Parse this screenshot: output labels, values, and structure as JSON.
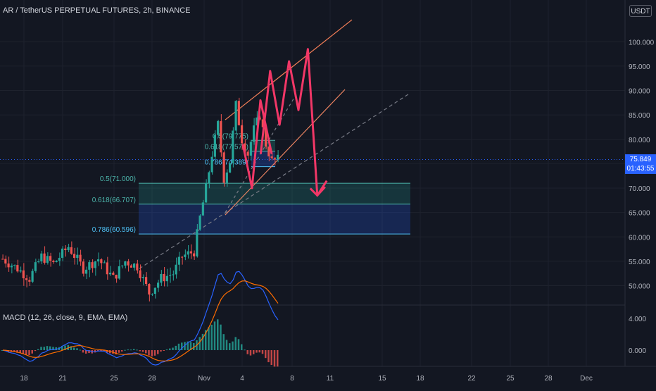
{
  "header": {
    "title": "AR / TetherUS PERPETUAL FUTURES, 2h, BINANCE",
    "currency_button": "USDT"
  },
  "macd_panel": {
    "title": "MACD (12, 26, close, 9, EMA, EMA)"
  },
  "last_price": {
    "value": "75.849",
    "countdown": "01:43:55",
    "color": "#2962ff"
  },
  "colors": {
    "background": "#131722",
    "grid": "#1e222d",
    "up_candle": "#26a69a",
    "down_candle": "#ef5350",
    "fib_upper_zone": "#26a69a",
    "fib_lower_zone": "#2962ff",
    "fib_line_upper": "#4db6ac",
    "fib_line_lower": "#4fc3f7",
    "projection_path": "#f23767",
    "channel": "#f57f58",
    "trendline": "#787b86",
    "macd_line": "#2962ff",
    "signal_line": "#ff6d00"
  },
  "fib_levels_main": [
    {
      "label": "0.5(71.000)",
      "price": 71.0
    },
    {
      "label": "0.618(66.707)",
      "price": 66.707
    },
    {
      "label": "0.786(60.596)",
      "price": 60.596
    }
  ],
  "fib_levels_small": [
    {
      "label": "0.5(79.775)",
      "price": 79.775
    },
    {
      "label": "0.618(77.575)",
      "price": 77.575
    },
    {
      "label": "0.786(74.389)",
      "price": 74.389
    }
  ],
  "chart_data": {
    "type": "candlestick",
    "y_axis": {
      "range": [
        45.5,
        107
      ],
      "ticks": [
        50,
        55,
        60,
        65,
        70,
        75,
        80,
        85,
        90,
        95,
        100
      ],
      "tick_labels": [
        "50.000",
        "55.000",
        "60.000",
        "65.000",
        "70.000",
        "75.000",
        "80.000",
        "85.000",
        "90.000",
        "95.000",
        "100.000"
      ]
    },
    "x_axis": {
      "ticks": [
        "18",
        "21",
        "25",
        "28",
        "Nov",
        "4",
        "8",
        "11",
        "15",
        "18",
        "22",
        "25",
        "28",
        "Dec"
      ]
    },
    "price_path_anchors": [
      [
        0,
        55.5
      ],
      [
        5,
        53.5
      ],
      [
        9,
        51.5
      ],
      [
        13,
        56
      ],
      [
        17,
        54.5
      ],
      [
        22,
        58
      ],
      [
        27,
        53.5
      ],
      [
        32,
        55.5
      ],
      [
        37,
        51.5
      ],
      [
        41,
        55
      ],
      [
        45,
        54
      ],
      [
        49,
        48.5
      ],
      [
        53,
        51.5
      ],
      [
        57,
        52.5
      ],
      [
        60,
        56
      ],
      [
        64,
        57
      ],
      [
        66,
        64
      ],
      [
        68,
        70
      ],
      [
        70,
        77
      ],
      [
        72,
        83
      ],
      [
        74,
        72
      ],
      [
        76,
        75.5
      ],
      [
        78,
        87
      ],
      [
        80,
        80
      ],
      [
        82,
        77
      ],
      [
        84,
        82
      ],
      [
        86,
        85
      ],
      [
        88,
        79
      ],
      [
        90,
        75.5
      ],
      [
        92,
        75.8
      ]
    ],
    "candle_count": 93,
    "macd": {
      "y_ticks": [
        0,
        4
      ],
      "y_tick_labels": [
        "0.000",
        "4.000"
      ]
    },
    "projection_path": [
      [
        "Nov 7",
        77
      ],
      [
        "Nov 8",
        94
      ],
      [
        "Nov 9",
        83
      ],
      [
        "Nov 10",
        96
      ],
      [
        "Nov 11",
        86
      ],
      [
        "Nov 12",
        98.5
      ],
      [
        "Nov 13",
        68.5
      ],
      [
        "Nov 14",
        71.5
      ]
    ]
  }
}
